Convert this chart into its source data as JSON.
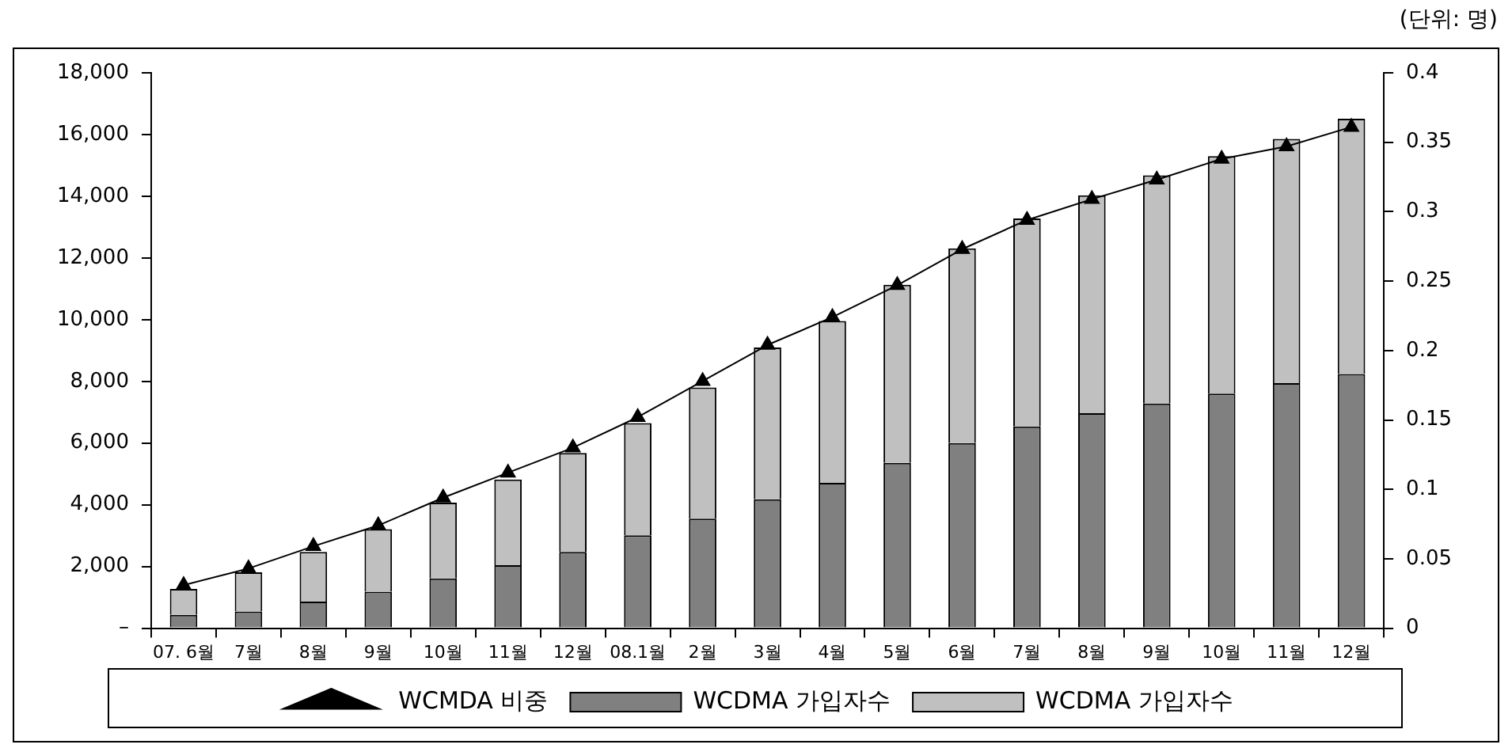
{
  "chart_data": {
    "type": "bar",
    "stacked": true,
    "legend": "bottom",
    "marker": "triangle",
    "categories": [
      "07. 6월",
      "7월",
      "8월",
      "9월",
      "10월",
      "11월",
      "12월",
      "08.1월",
      "2월",
      "3월",
      "4월",
      "5월",
      "6월",
      "7월",
      "8월",
      "9월",
      "10월",
      "11월",
      "12월"
    ],
    "series": [
      {
        "name": "WCDMA 가입자수",
        "color": "#808080",
        "values": [
          430,
          540,
          860,
          1180,
          1610,
          2040,
          2470,
          3010,
          3550,
          4180,
          4710,
          5360,
          6000,
          6540,
          6970,
          7280,
          7600,
          7940,
          8240
        ]
      },
      {
        "name": "WCDMA 가입자수",
        "color": "#c0c0c0",
        "values": [
          840,
          1270,
          1610,
          2030,
          2460,
          2780,
          3210,
          3640,
          4250,
          4920,
          5250,
          5770,
          6310,
          6740,
          7060,
          7400,
          7700,
          7920,
          8270
        ]
      },
      {
        "name": "WCMDA 비중",
        "type": "line",
        "axis": "y2",
        "color": "#000000",
        "values": [
          0.031,
          0.043,
          0.059,
          0.074,
          0.094,
          0.112,
          0.13,
          0.152,
          0.178,
          0.204,
          0.224,
          0.247,
          0.273,
          0.294,
          0.309,
          0.323,
          0.338,
          0.347,
          0.361
        ]
      }
    ],
    "ylim": [
      0,
      18000
    ],
    "yticks": [
      {
        "value": 0,
        "label": "–"
      },
      {
        "value": 2000,
        "label": "2,000"
      },
      {
        "value": 4000,
        "label": "4,000"
      },
      {
        "value": 6000,
        "label": "6,000"
      },
      {
        "value": 8000,
        "label": "8,000"
      },
      {
        "value": 10000,
        "label": "10,000"
      },
      {
        "value": 12000,
        "label": "12,000"
      },
      {
        "value": 14000,
        "label": "14,000"
      },
      {
        "value": 16000,
        "label": "16,000"
      },
      {
        "value": 18000,
        "label": "18,000"
      }
    ],
    "y2lim": [
      0,
      0.4
    ],
    "y2ticks": [
      0,
      0.05,
      0.1,
      0.15,
      0.2,
      0.25,
      0.3,
      0.35,
      0.4
    ],
    "annotations": [
      "(단위: 명)"
    ]
  }
}
